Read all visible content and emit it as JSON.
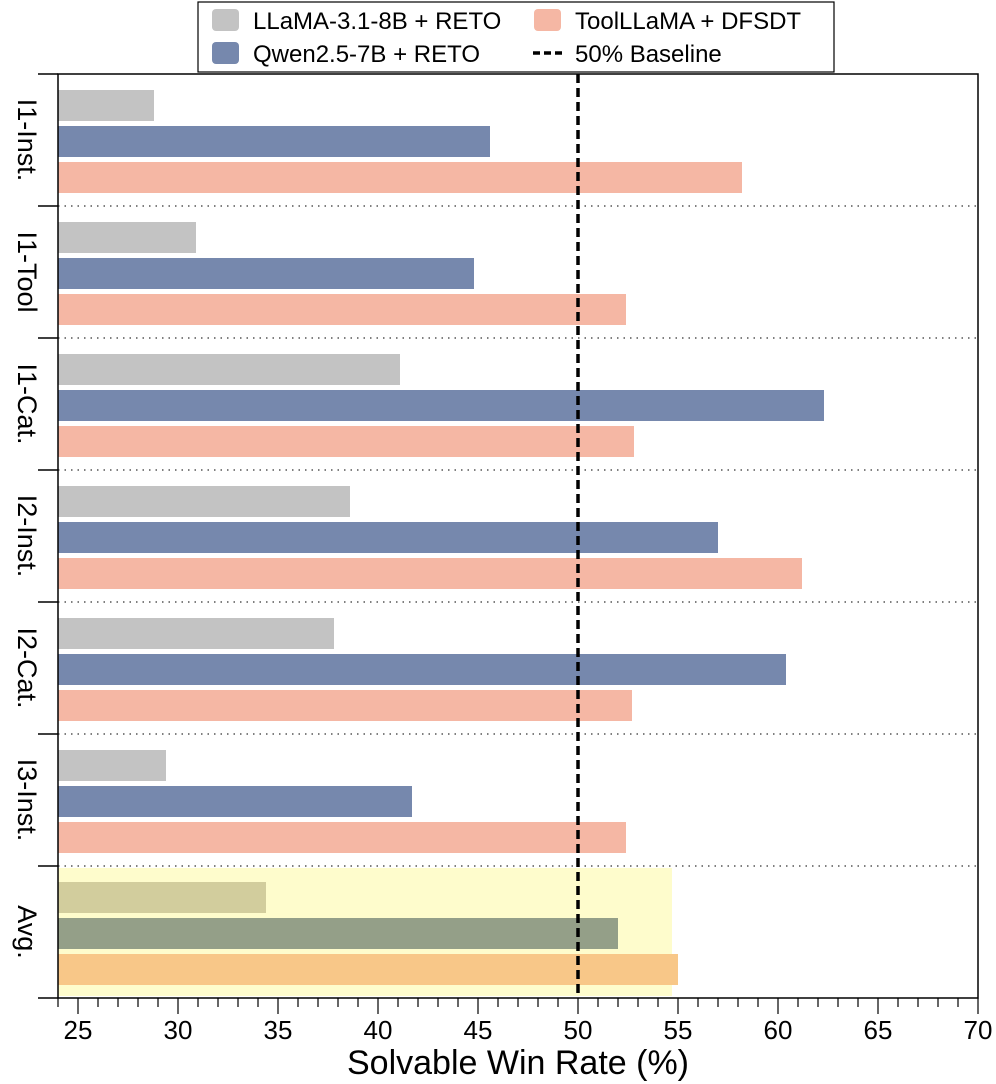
{
  "chart_data": {
    "type": "bar",
    "orientation": "horizontal",
    "title": "",
    "xlabel": "Solvable Win Rate (%)",
    "ylabel": "",
    "xlim": [
      24,
      70
    ],
    "xticks": [
      25,
      30,
      35,
      40,
      45,
      50,
      55,
      60,
      65,
      70
    ],
    "categories": [
      "I1-Inst.",
      "I1-Tool",
      "I1-Cat.",
      "I2-Inst.",
      "I2-Cat.",
      "I3-Inst.",
      "Avg."
    ],
    "series": [
      {
        "name": "LLaMA-3.1-8B + RETO",
        "color": "#c3c3c3",
        "values": [
          28.8,
          30.9,
          41.1,
          38.6,
          37.8,
          29.4,
          34.4
        ]
      },
      {
        "name": "Qwen2.5-7B + RETO",
        "color": "#7688ad",
        "values": [
          45.6,
          44.8,
          62.3,
          57.0,
          60.4,
          41.7,
          52.0
        ]
      },
      {
        "name": "ToolLLaMA + DFSDT",
        "color": "#f5b7a4",
        "values": [
          58.2,
          52.4,
          52.8,
          61.2,
          52.7,
          52.4,
          55.0
        ]
      }
    ],
    "reference_line": {
      "name": "50% Baseline",
      "value": 50,
      "style": "dashed",
      "color": "#000000"
    },
    "highlight": {
      "category": "Avg.",
      "x_end": 54.7,
      "color": "#fefccc"
    },
    "separators": "dotted",
    "grid": false,
    "legend_position": "top-center"
  }
}
